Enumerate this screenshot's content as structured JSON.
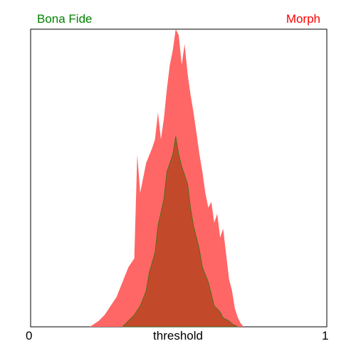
{
  "chart_data": {
    "type": "area",
    "title": "",
    "xlabel": "threshold",
    "ylabel": "",
    "xlim": [
      0,
      1
    ],
    "ylim": [
      0,
      1
    ],
    "x_tick_labels": [
      "0",
      "1"
    ],
    "grid": false,
    "legend_placement": "top",
    "overlap_color": "#c24a2a",
    "series": [
      {
        "name": "Bona Fide",
        "color": "#008000",
        "x": [
          0.31,
          0.33,
          0.35,
          0.37,
          0.39,
          0.4,
          0.42,
          0.43,
          0.45,
          0.46,
          0.48,
          0.49,
          0.5,
          0.51,
          0.53,
          0.54,
          0.55,
          0.57,
          0.58,
          0.6,
          0.61,
          0.62,
          0.64,
          0.65,
          0.67,
          0.68,
          0.7
        ],
        "values": [
          0.0,
          0.02,
          0.04,
          0.07,
          0.12,
          0.18,
          0.25,
          0.34,
          0.43,
          0.52,
          0.58,
          0.64,
          0.58,
          0.54,
          0.48,
          0.4,
          0.34,
          0.26,
          0.2,
          0.15,
          0.11,
          0.07,
          0.05,
          0.03,
          0.02,
          0.01,
          0.0
        ]
      },
      {
        "name": "Morph",
        "color": "#ff6666",
        "x": [
          0.2,
          0.23,
          0.25,
          0.27,
          0.29,
          0.31,
          0.33,
          0.35,
          0.36,
          0.37,
          0.39,
          0.41,
          0.42,
          0.43,
          0.44,
          0.45,
          0.46,
          0.47,
          0.48,
          0.49,
          0.5,
          0.51,
          0.52,
          0.53,
          0.54,
          0.55,
          0.56,
          0.57,
          0.58,
          0.59,
          0.6,
          0.61,
          0.62,
          0.63,
          0.64,
          0.65,
          0.67,
          0.68,
          0.69,
          0.7,
          0.71,
          0.72
        ],
        "values": [
          0.0,
          0.02,
          0.04,
          0.07,
          0.1,
          0.15,
          0.2,
          0.23,
          0.58,
          0.45,
          0.55,
          0.6,
          0.63,
          0.72,
          0.63,
          0.7,
          0.8,
          0.88,
          0.93,
          1.0,
          0.98,
          0.88,
          0.95,
          0.85,
          0.78,
          0.72,
          0.65,
          0.58,
          0.52,
          0.45,
          0.4,
          0.42,
          0.35,
          0.38,
          0.3,
          0.33,
          0.16,
          0.12,
          0.06,
          0.03,
          0.01,
          0.0
        ]
      }
    ]
  }
}
